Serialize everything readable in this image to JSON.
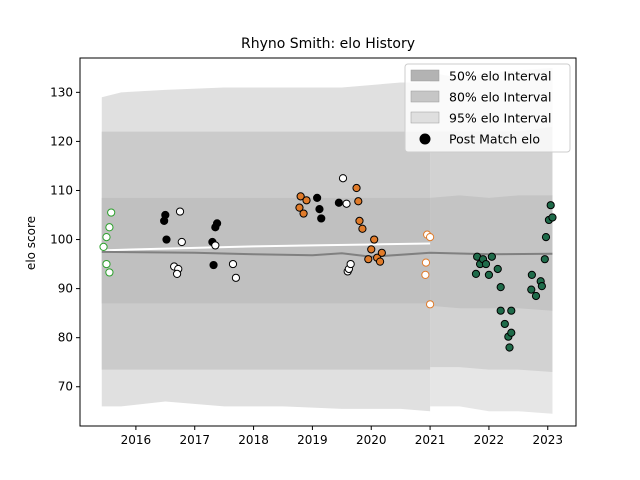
{
  "chart_data": {
    "type": "scatter",
    "title": "Rhyno Smith: elo History",
    "xlabel": "",
    "ylabel": "elo score",
    "xlim": [
      2015.05,
      2023.48
    ],
    "ylim": [
      62,
      137
    ],
    "xticks": [
      2016,
      2017,
      2018,
      2019,
      2020,
      2021,
      2022,
      2023
    ],
    "yticks": [
      70,
      80,
      90,
      100,
      110,
      120,
      130
    ],
    "grid": false,
    "legend_position": "top-right",
    "legend": [
      {
        "label": "50% elo Interval",
        "kind": "band",
        "color": "#b3b3b3"
      },
      {
        "label": "80% elo Interval",
        "kind": "band",
        "color": "#c6c6c6"
      },
      {
        "label": "95% elo Interval",
        "kind": "band",
        "color": "#dfdfdf"
      },
      {
        "label": "Post Match elo",
        "kind": "marker",
        "color": "#000000"
      }
    ],
    "bands_historical": {
      "x_range": [
        2015.42,
        2021.0
      ],
      "band_95": {
        "x": [
          2015.42,
          2015.75,
          2016.5,
          2017.5,
          2018.5,
          2019.5,
          2020.5,
          2021.0
        ],
        "upper": [
          129,
          130,
          130.5,
          131,
          131,
          131,
          132,
          132
        ],
        "lower": [
          66,
          66,
          67,
          66,
          66,
          65.5,
          65.5,
          65
        ]
      },
      "band_80": {
        "x": [
          2015.42,
          2021.0
        ],
        "upper": [
          122,
          122
        ],
        "lower": [
          73.5,
          73.5
        ]
      },
      "band_50": {
        "x": [
          2015.42,
          2021.0
        ],
        "upper": [
          108.5,
          108.5
        ],
        "lower": [
          87,
          87
        ]
      }
    },
    "bands_forecast": {
      "x_range": [
        2021.0,
        2023.08
      ],
      "band_95": {
        "x": [
          2021.0,
          2021.5,
          2022.0,
          2022.5,
          2023.08
        ],
        "upper": [
          134,
          133,
          134,
          134.5,
          135
        ],
        "lower": [
          66,
          66,
          65,
          65,
          64.5
        ]
      },
      "band_80": {
        "x": [
          2021.0,
          2021.5,
          2022.0,
          2022.5,
          2023.08
        ],
        "upper": [
          122,
          122,
          122,
          122,
          123
        ],
        "lower": [
          74,
          74,
          73.5,
          73.5,
          73
        ]
      },
      "band_50": {
        "x": [
          2021.0,
          2021.5,
          2022.0,
          2022.5,
          2023.08
        ],
        "upper": [
          108.5,
          109,
          108.5,
          109,
          109
        ],
        "lower": [
          86.5,
          86,
          86,
          86,
          85.5
        ]
      }
    },
    "median_lines": [
      {
        "color": "#ffffff",
        "x": [
          2015.42,
          2016.0,
          2017.0,
          2018.0,
          2019.0,
          2020.0,
          2021.0
        ],
        "y": [
          97.8,
          98.0,
          98.3,
          98.6,
          98.8,
          99.0,
          99.2
        ]
      },
      {
        "color": "#808080",
        "x": [
          2015.42,
          2017.0,
          2018.0,
          2019.0,
          2019.5,
          2020.0,
          2021.0,
          2022.0,
          2023.08
        ],
        "y": [
          97.5,
          97.3,
          97.0,
          96.8,
          97.2,
          96.5,
          97.3,
          97.0,
          97.1
        ]
      }
    ],
    "series": [
      {
        "marker_face": "#ffffff",
        "marker_edge": "#2ca02c",
        "points": [
          [
            2015.45,
            98.5
          ],
          [
            2015.5,
            100.5
          ],
          [
            2015.5,
            95.0
          ],
          [
            2015.55,
            102.5
          ],
          [
            2015.58,
            105.5
          ],
          [
            2015.55,
            93.3
          ]
        ]
      },
      {
        "marker_face": "#000000",
        "marker_edge": "#000000",
        "points": [
          [
            2016.5,
            105.0
          ],
          [
            2016.48,
            103.8
          ],
          [
            2016.52,
            100.0
          ],
          [
            2017.3,
            99.5
          ],
          [
            2017.32,
            94.8
          ],
          [
            2017.35,
            102.5
          ],
          [
            2017.38,
            103.3
          ],
          [
            2019.08,
            108.5
          ],
          [
            2019.12,
            106.2
          ],
          [
            2019.15,
            104.3
          ],
          [
            2019.45,
            107.5
          ]
        ]
      },
      {
        "marker_face": "#ffffff",
        "marker_edge": "#000000",
        "points": [
          [
            2016.75,
            105.7
          ],
          [
            2016.78,
            99.5
          ],
          [
            2016.65,
            94.5
          ],
          [
            2016.72,
            94.0
          ],
          [
            2016.7,
            93.0
          ],
          [
            2017.35,
            98.8
          ],
          [
            2017.65,
            95.0
          ],
          [
            2017.7,
            92.2
          ],
          [
            2019.52,
            112.5
          ],
          [
            2019.58,
            107.3
          ],
          [
            2019.6,
            93.5
          ],
          [
            2019.62,
            94.0
          ],
          [
            2019.65,
            95.0
          ]
        ]
      },
      {
        "marker_face": "#e07b2a",
        "marker_edge": "#000000",
        "points": [
          [
            2018.8,
            108.8
          ],
          [
            2018.78,
            106.5
          ],
          [
            2018.9,
            108.0
          ],
          [
            2018.85,
            105.3
          ],
          [
            2019.75,
            110.5
          ],
          [
            2019.78,
            107.8
          ],
          [
            2019.8,
            103.8
          ],
          [
            2019.85,
            102.2
          ],
          [
            2020.0,
            98.0
          ],
          [
            2020.05,
            100.0
          ],
          [
            2020.1,
            96.3
          ],
          [
            2020.15,
            95.5
          ],
          [
            2020.18,
            97.3
          ],
          [
            2019.95,
            96.0
          ]
        ]
      },
      {
        "marker_face": "#ffffff",
        "marker_edge": "#e07b2a",
        "points": [
          [
            2020.95,
            101.0
          ],
          [
            2021.0,
            100.5
          ],
          [
            2020.93,
            95.3
          ],
          [
            2020.92,
            92.8
          ],
          [
            2021.0,
            86.8
          ]
        ]
      },
      {
        "marker_face": "#1f6b4a",
        "marker_edge": "#000000",
        "points": [
          [
            2021.8,
            96.5
          ],
          [
            2021.78,
            93.0
          ],
          [
            2021.85,
            95.0
          ],
          [
            2021.9,
            96.0
          ],
          [
            2021.95,
            95.0
          ],
          [
            2022.0,
            92.8
          ],
          [
            2022.05,
            96.5
          ],
          [
            2022.15,
            94.0
          ],
          [
            2022.2,
            90.3
          ],
          [
            2022.2,
            85.5
          ],
          [
            2022.27,
            82.8
          ],
          [
            2022.33,
            80.2
          ],
          [
            2022.38,
            85.5
          ],
          [
            2022.38,
            81.0
          ],
          [
            2022.35,
            78.0
          ],
          [
            2022.73,
            92.8
          ],
          [
            2022.72,
            89.8
          ],
          [
            2022.8,
            88.5
          ],
          [
            2022.88,
            91.5
          ],
          [
            2022.9,
            90.5
          ],
          [
            2022.95,
            96.0
          ],
          [
            2022.97,
            100.5
          ],
          [
            2023.02,
            104.0
          ],
          [
            2023.05,
            107.0
          ],
          [
            2023.08,
            104.5
          ]
        ]
      }
    ]
  }
}
